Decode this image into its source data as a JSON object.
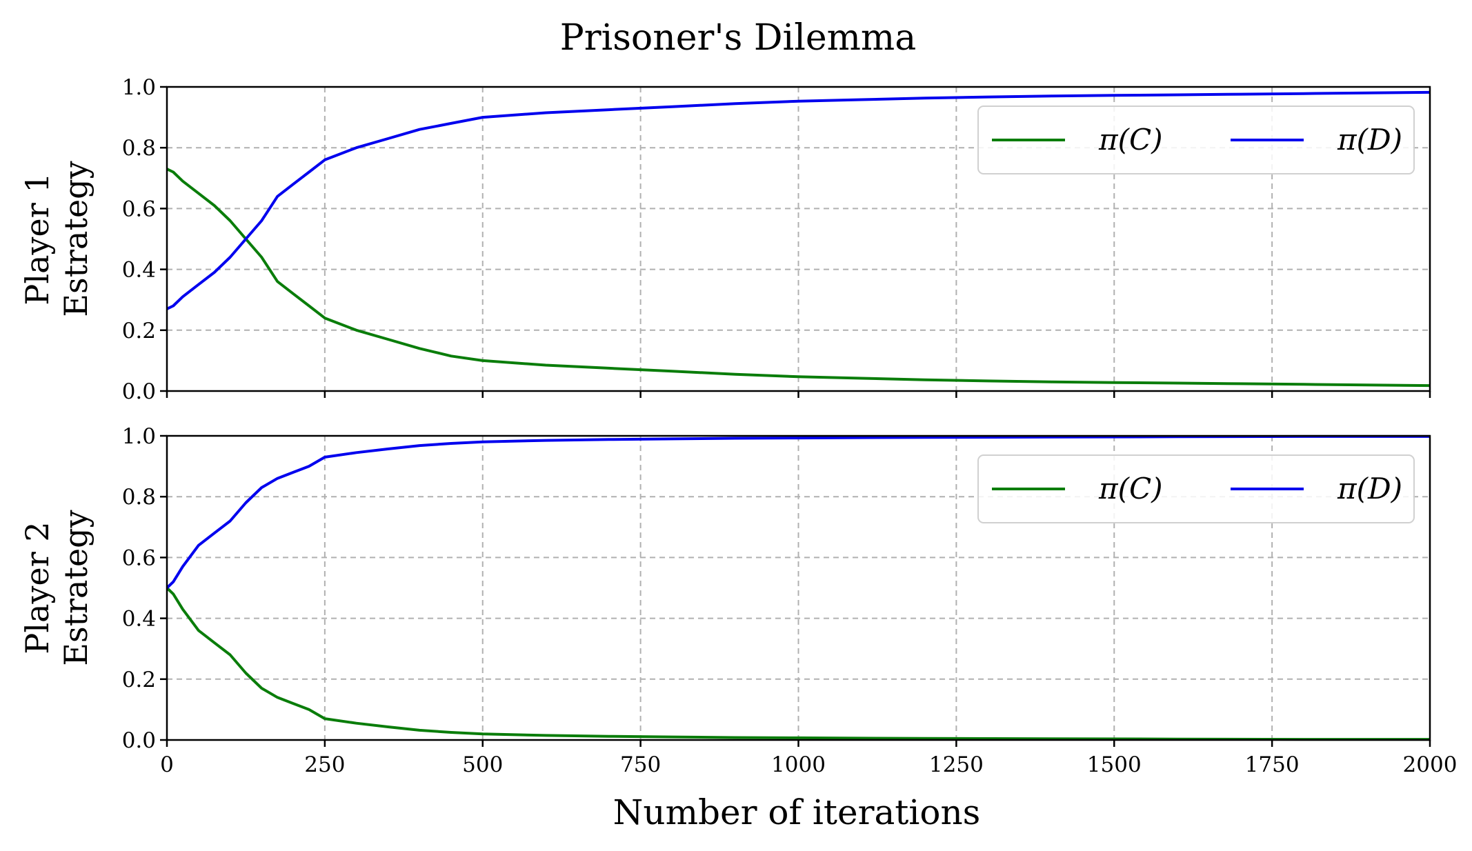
{
  "figure": {
    "title": "Prisoner's Dilemma",
    "xlabel": "Number of iterations"
  },
  "colors": {
    "pi_C": "#0a7d0a",
    "pi_D": "#0000ee",
    "grid": "#b0b0b0",
    "axis": "#000000",
    "legend_border": "#d0d0d0"
  },
  "chart_data": [
    {
      "type": "line",
      "ylabel": [
        "Player 1",
        "Estrategy"
      ],
      "xlim": [
        0,
        2000
      ],
      "ylim": [
        0,
        1.0
      ],
      "xticks": [
        0,
        250,
        500,
        750,
        1000,
        1250,
        1500,
        1750,
        2000
      ],
      "yticks": [
        "0.0",
        "0.2",
        "0.4",
        "0.6",
        "0.8",
        "1.0"
      ],
      "grid": true,
      "legend": {
        "placement": "top-right",
        "ncol": 2
      },
      "x": [
        0,
        10,
        25,
        50,
        75,
        100,
        125,
        150,
        175,
        200,
        225,
        250,
        300,
        350,
        400,
        450,
        500,
        600,
        700,
        800,
        900,
        1000,
        1100,
        1200,
        1300,
        1400,
        1500,
        1600,
        1700,
        1800,
        1900,
        2000
      ],
      "series": [
        {
          "name": "π(C)",
          "values": [
            0.73,
            0.72,
            0.69,
            0.65,
            0.61,
            0.56,
            0.5,
            0.44,
            0.36,
            0.32,
            0.28,
            0.24,
            0.2,
            0.17,
            0.14,
            0.115,
            0.1,
            0.085,
            0.075,
            0.065,
            0.055,
            0.047,
            0.042,
            0.037,
            0.033,
            0.03,
            0.028,
            0.026,
            0.024,
            0.022,
            0.02,
            0.018
          ]
        },
        {
          "name": "π(D)",
          "values": [
            0.27,
            0.28,
            0.31,
            0.35,
            0.39,
            0.44,
            0.5,
            0.56,
            0.64,
            0.68,
            0.72,
            0.76,
            0.8,
            0.83,
            0.86,
            0.88,
            0.9,
            0.915,
            0.925,
            0.935,
            0.945,
            0.953,
            0.958,
            0.963,
            0.967,
            0.97,
            0.972,
            0.974,
            0.976,
            0.978,
            0.98,
            0.982
          ]
        }
      ]
    },
    {
      "type": "line",
      "ylabel": [
        "Player 2",
        "Estrategy"
      ],
      "xlim": [
        0,
        2000
      ],
      "ylim": [
        0,
        1.0
      ],
      "xticks": [
        0,
        250,
        500,
        750,
        1000,
        1250,
        1500,
        1750,
        2000
      ],
      "yticks": [
        "0.0",
        "0.2",
        "0.4",
        "0.6",
        "0.8",
        "1.0"
      ],
      "grid": true,
      "legend": {
        "placement": "top-right",
        "ncol": 2
      },
      "x": [
        0,
        10,
        25,
        50,
        75,
        100,
        125,
        150,
        175,
        200,
        225,
        250,
        300,
        350,
        400,
        450,
        500,
        600,
        700,
        800,
        900,
        1000,
        1200,
        1400,
        1600,
        1800,
        2000
      ],
      "series": [
        {
          "name": "π(C)",
          "values": [
            0.5,
            0.48,
            0.43,
            0.36,
            0.32,
            0.28,
            0.22,
            0.17,
            0.14,
            0.12,
            0.1,
            0.07,
            0.055,
            0.043,
            0.032,
            0.025,
            0.02,
            0.015,
            0.012,
            0.01,
            0.008,
            0.007,
            0.005,
            0.004,
            0.003,
            0.002,
            0.002
          ]
        },
        {
          "name": "π(D)",
          "values": [
            0.5,
            0.52,
            0.57,
            0.64,
            0.68,
            0.72,
            0.78,
            0.83,
            0.86,
            0.88,
            0.9,
            0.93,
            0.945,
            0.957,
            0.968,
            0.975,
            0.98,
            0.985,
            0.988,
            0.99,
            0.992,
            0.993,
            0.995,
            0.996,
            0.997,
            0.998,
            0.998
          ]
        }
      ]
    }
  ]
}
